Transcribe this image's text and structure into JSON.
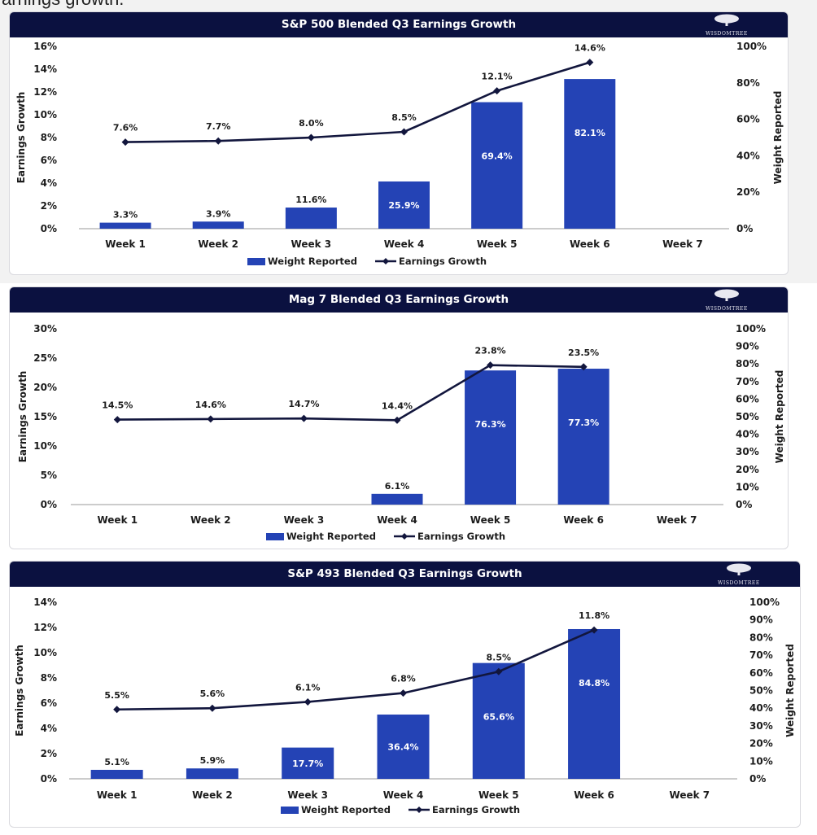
{
  "page": {
    "cut_off_text": "arnings growth.",
    "logo_text": "WISDOMTREE"
  },
  "colors": {
    "header_bg": "#0b1140",
    "bar": "#2443b5",
    "line": "#12163d"
  },
  "chart_data": [
    {
      "type": "bar",
      "title": "S&P 500 Blended Q3 Earnings Growth",
      "categories": [
        "Week 1",
        "Week 2",
        "Week 3",
        "Week 4",
        "Week 5",
        "Week 6",
        "Week 7"
      ],
      "ylabel": "Earnings Growth",
      "y2label": "Weight Reported",
      "ylim": [
        0,
        16
      ],
      "y_ticks": [
        0,
        2,
        4,
        6,
        8,
        10,
        12,
        14,
        16
      ],
      "y2lim": [
        0,
        100
      ],
      "y2_ticks": [
        0,
        20,
        40,
        60,
        80,
        100
      ],
      "series": [
        {
          "name": "Weight Reported",
          "axis": "right",
          "kind": "bar",
          "values": [
            3.3,
            3.9,
            11.6,
            25.9,
            69.4,
            82.1,
            null
          ]
        },
        {
          "name": "Earnings Growth",
          "axis": "left",
          "kind": "line",
          "values": [
            7.6,
            7.7,
            8.0,
            8.5,
            12.1,
            14.6,
            null
          ]
        }
      ],
      "legend": [
        "Weight Reported",
        "Earnings Growth"
      ]
    },
    {
      "type": "bar",
      "title": "Mag 7 Blended Q3 Earnings Growth",
      "categories": [
        "Week 1",
        "Week 2",
        "Week 3",
        "Week 4",
        "Week 5",
        "Week 6",
        "Week 7"
      ],
      "ylabel": "Earnings Growth",
      "y2label": "Weight Reported",
      "ylim": [
        0,
        30
      ],
      "y_ticks": [
        0,
        5,
        10,
        15,
        20,
        25,
        30
      ],
      "y2lim": [
        0,
        100
      ],
      "y2_ticks": [
        0,
        10,
        20,
        30,
        40,
        50,
        60,
        70,
        80,
        90,
        100
      ],
      "series": [
        {
          "name": "Weight Reported",
          "axis": "right",
          "kind": "bar",
          "values": [
            null,
            null,
            null,
            6.1,
            76.3,
            77.3,
            null
          ]
        },
        {
          "name": "Earnings Growth",
          "axis": "left",
          "kind": "line",
          "values": [
            14.5,
            14.6,
            14.7,
            14.4,
            23.8,
            23.5,
            null
          ]
        }
      ],
      "legend": [
        "Weight Reported",
        "Earnings Growth"
      ]
    },
    {
      "type": "bar",
      "title": "S&P 493 Blended Q3 Earnings Growth",
      "categories": [
        "Week 1",
        "Week 2",
        "Week 3",
        "Week 4",
        "Week 5",
        "Week 6",
        "Week 7"
      ],
      "ylabel": "Earnings Growth",
      "y2label": "Weight Reported",
      "ylim": [
        0,
        14
      ],
      "y_ticks": [
        0,
        2,
        4,
        6,
        8,
        10,
        12,
        14
      ],
      "y2lim": [
        0,
        100
      ],
      "y2_ticks": [
        0,
        10,
        20,
        30,
        40,
        50,
        60,
        70,
        80,
        90,
        100
      ],
      "series": [
        {
          "name": "Weight Reported",
          "axis": "right",
          "kind": "bar",
          "values": [
            5.1,
            5.9,
            17.7,
            36.4,
            65.6,
            84.8,
            null
          ]
        },
        {
          "name": "Earnings Growth",
          "axis": "left",
          "kind": "line",
          "values": [
            5.5,
            5.6,
            6.1,
            6.8,
            8.5,
            11.8,
            null
          ]
        }
      ],
      "legend": [
        "Weight Reported",
        "Earnings Growth"
      ]
    }
  ]
}
